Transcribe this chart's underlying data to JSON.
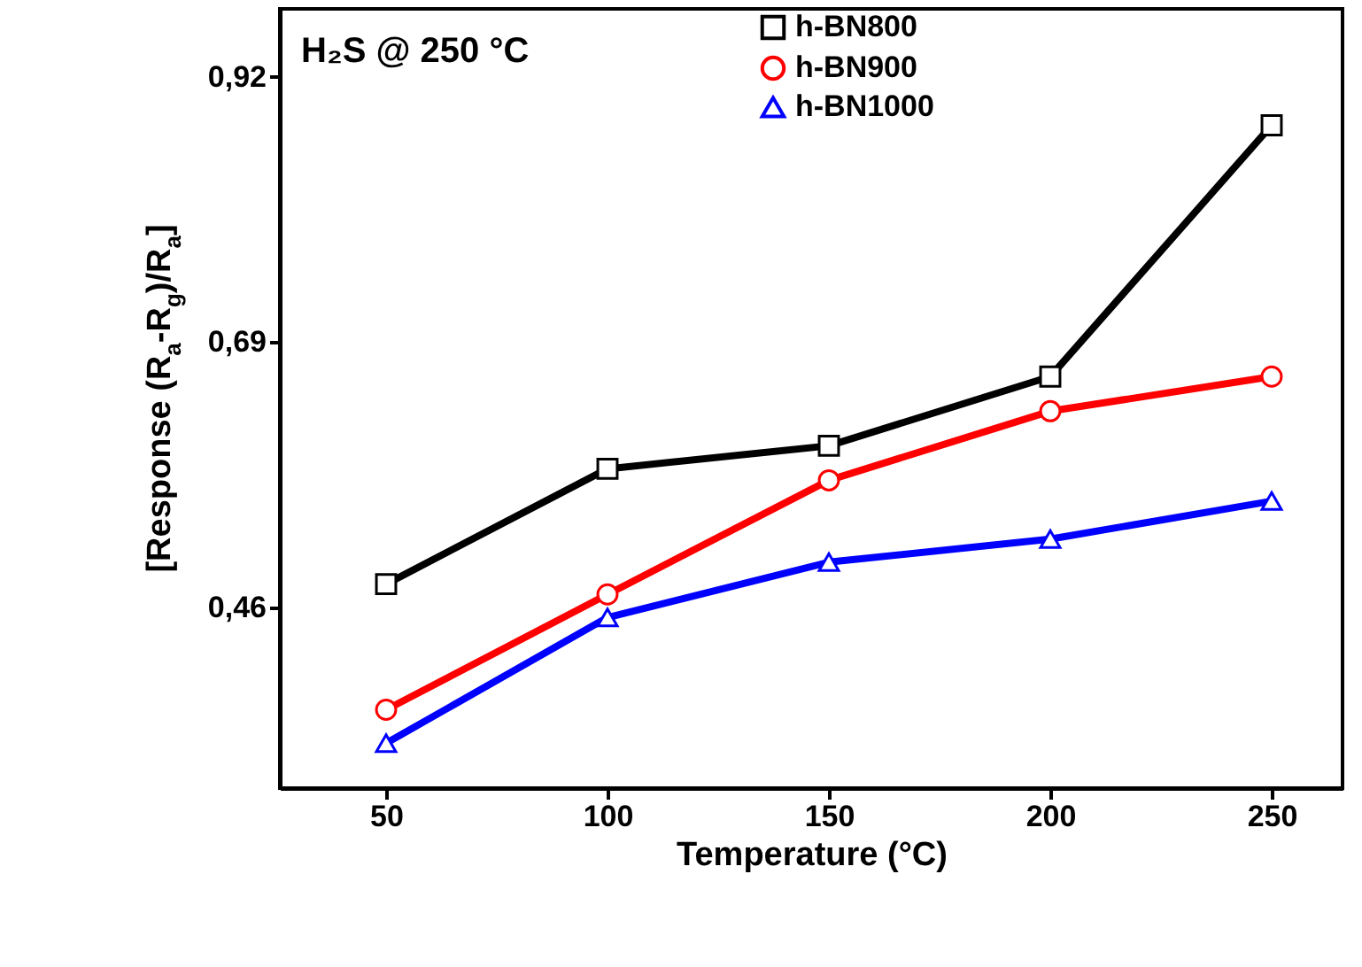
{
  "chart_data": {
    "type": "line",
    "xlabel": "Temperature (°C)",
    "ylabel": "[Response (R$_{a}$-R$_{g}$)/R$_{a}$]",
    "annotations": [
      "H₂S @ 250 °C"
    ],
    "x": [
      50,
      100,
      150,
      200,
      250
    ],
    "xlim": [
      26,
      266
    ],
    "xticks": [
      50,
      100,
      150,
      200,
      250
    ],
    "ylim": [
      0.303,
      0.979
    ],
    "yticks": [
      {
        "value": 0.46,
        "label": "0,46"
      },
      {
        "value": 0.69,
        "label": "0,69"
      },
      {
        "value": 0.92,
        "label": "0,92"
      }
    ],
    "grid": false,
    "legend": "top right",
    "line_style": "solid",
    "series": [
      {
        "name": "h-BN800",
        "color": "#000000",
        "marker": "square",
        "values": [
          0.48,
          0.58,
          0.6,
          0.66,
          0.878
        ]
      },
      {
        "name": "h-BN900",
        "color": "#ff0000",
        "marker": "circle",
        "values": [
          0.371,
          0.471,
          0.57,
          0.63,
          0.66
        ]
      },
      {
        "name": "h-BN1000",
        "color": "#0000ff",
        "marker": "triangle",
        "values": [
          0.342,
          0.451,
          0.499,
          0.519,
          0.552
        ]
      }
    ]
  }
}
